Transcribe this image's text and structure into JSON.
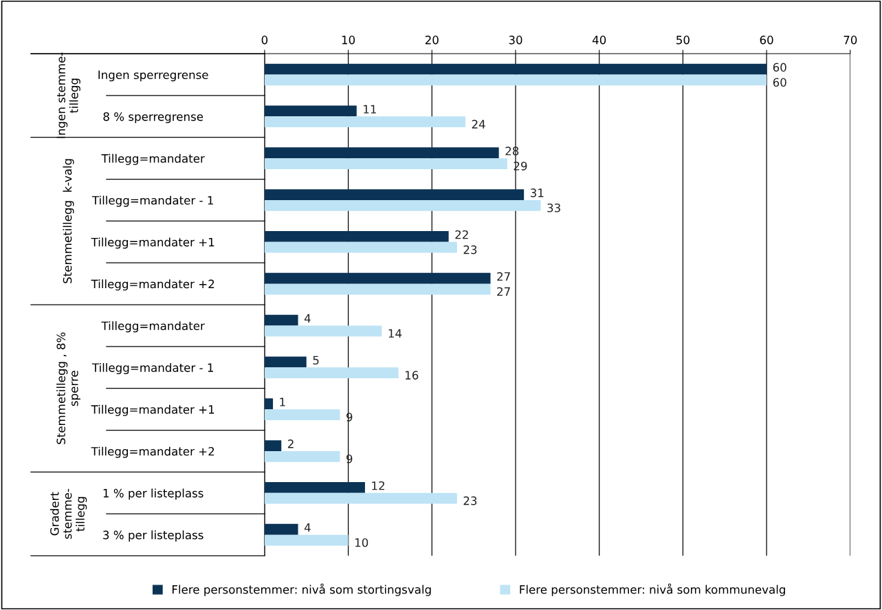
{
  "chart_data": {
    "type": "bar",
    "orientation": "horizontal",
    "categories": [
      "Ingen sperregrense",
      "8 % sperregrense",
      "Tillegg=mandater",
      "Tillegg=mandater - 1",
      "Tillegg=mandater +1",
      "Tillegg=mandater +2",
      "Tillegg=mandater",
      "Tillegg=mandater - 1",
      "Tillegg=mandater +1",
      "Tillegg=mandater +2",
      "1 % per listeplass",
      "3 % per listeplass"
    ],
    "series": [
      {
        "name": "Flere personstemmer: nivå som stortingsvalg",
        "color": "#0b3356",
        "values": [
          60,
          11,
          28,
          31,
          22,
          27,
          4,
          5,
          1,
          2,
          12,
          4
        ]
      },
      {
        "name": "Flere personstemmer: nivå som kommunevalg",
        "color": "#bde3f5",
        "values": [
          60,
          24,
          29,
          33,
          23,
          27,
          14,
          16,
          9,
          9,
          23,
          10
        ]
      }
    ],
    "xlim": [
      0,
      70
    ],
    "xticks": [
      0,
      10,
      20,
      30,
      40,
      50,
      60,
      70
    ],
    "grid": "x",
    "legend": "bottom",
    "data_labels": true,
    "annotations": [
      "Ingen stemme-\ntillegg",
      "Stemmetillegg  k-valg",
      "Stemmetillegg , 8%\nsperre",
      "Gradert\nstemme-\ntillegg"
    ]
  }
}
